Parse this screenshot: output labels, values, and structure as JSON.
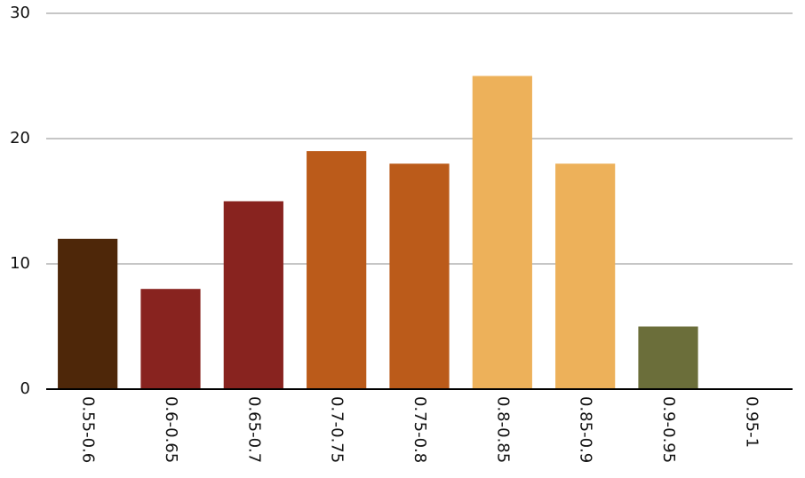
{
  "chart_data": {
    "type": "bar",
    "categories": [
      "0.55-0.6",
      "0.6-0.65",
      "0.65-0.7",
      "0.7-0.75",
      "0.75-0.8",
      "0.8-0.85",
      "0.85-0.9",
      "0.9-0.95",
      "0.95-1"
    ],
    "values": [
      12,
      8,
      15,
      19,
      18,
      25,
      18,
      5,
      0
    ],
    "colors": [
      "#4e2709",
      "#88231f",
      "#88231f",
      "#bb5b1a",
      "#bb5b1a",
      "#edb15a",
      "#edb15a",
      "#6b6e3a",
      "#6b6e3a"
    ],
    "ylim": [
      0,
      30
    ],
    "yticks": [
      0,
      10,
      20,
      30
    ],
    "grid": true
  }
}
